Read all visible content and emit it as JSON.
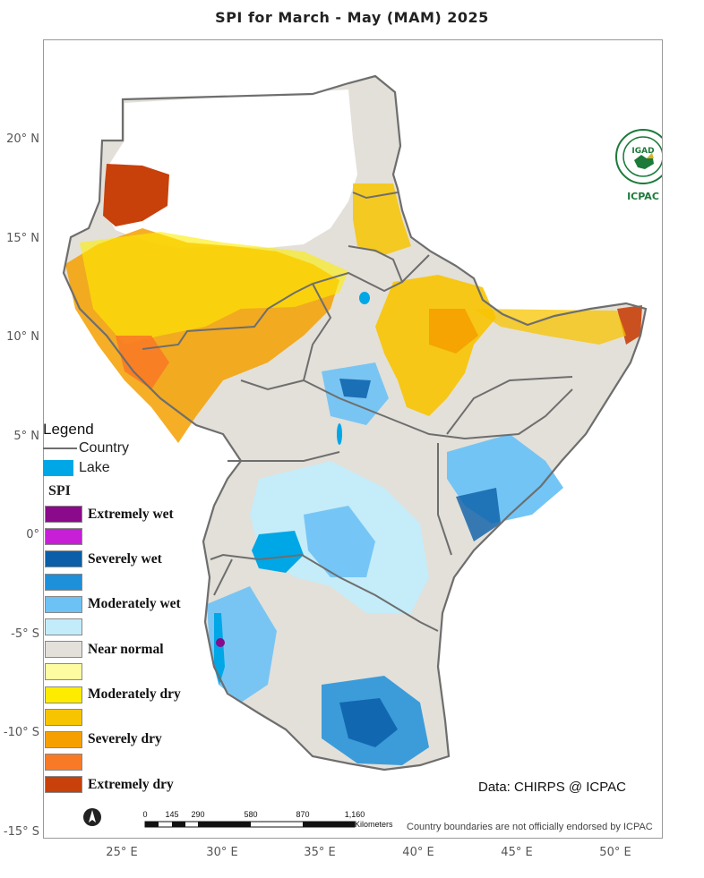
{
  "title": "SPI  for  March - May (MAM) 2025",
  "axes": {
    "lat_labels": [
      "20° N",
      "15° N",
      "10° N",
      "5° N",
      "0°",
      "-5° S",
      "-10° S",
      "-15° S"
    ],
    "lon_labels": [
      "25° E",
      "30° E",
      "35° E",
      "40° E",
      "45° E",
      "50° E"
    ]
  },
  "legend": {
    "title": "Legend",
    "country_label": "Country",
    "lake_label": "Lake",
    "spi_title": "SPI",
    "classes": [
      {
        "label": "Extremely wet",
        "color": "#8b0a8b"
      },
      {
        "label": "",
        "color": "#c71fd6"
      },
      {
        "label": "Severely wet",
        "color": "#0a5fa8"
      },
      {
        "label": "",
        "color": "#1e8fd9"
      },
      {
        "label": "Moderately wet",
        "color": "#6cc2f5"
      },
      {
        "label": "",
        "color": "#c3ecfb"
      },
      {
        "label": "Near normal",
        "color": "#e3e0d9"
      },
      {
        "label": "",
        "color": "#fdfca0"
      },
      {
        "label": "Moderately dry",
        "color": "#fdec00"
      },
      {
        "label": "",
        "color": "#f7c400"
      },
      {
        "label": "Severely dry",
        "color": "#f5a000"
      },
      {
        "label": "",
        "color": "#f97a26"
      },
      {
        "label": "Extremely dry",
        "color": "#c8400a"
      }
    ],
    "country_color": "#6e6e6e",
    "lake_color": "#00a7e6"
  },
  "logo": {
    "text": "IGAD",
    "acronym": "ICPAC"
  },
  "credit": "Data: CHIRPS @ ICPAC",
  "disclaimer": "Country boundaries are not officially endorsed by ICPAC",
  "scalebar": {
    "labels": [
      "0",
      "145",
      "290",
      "580",
      "870",
      "1,160"
    ],
    "unit": "Kilometers"
  },
  "icons": {
    "north_arrow": "north-arrow-icon",
    "logo": "igad-emblem-icon"
  }
}
